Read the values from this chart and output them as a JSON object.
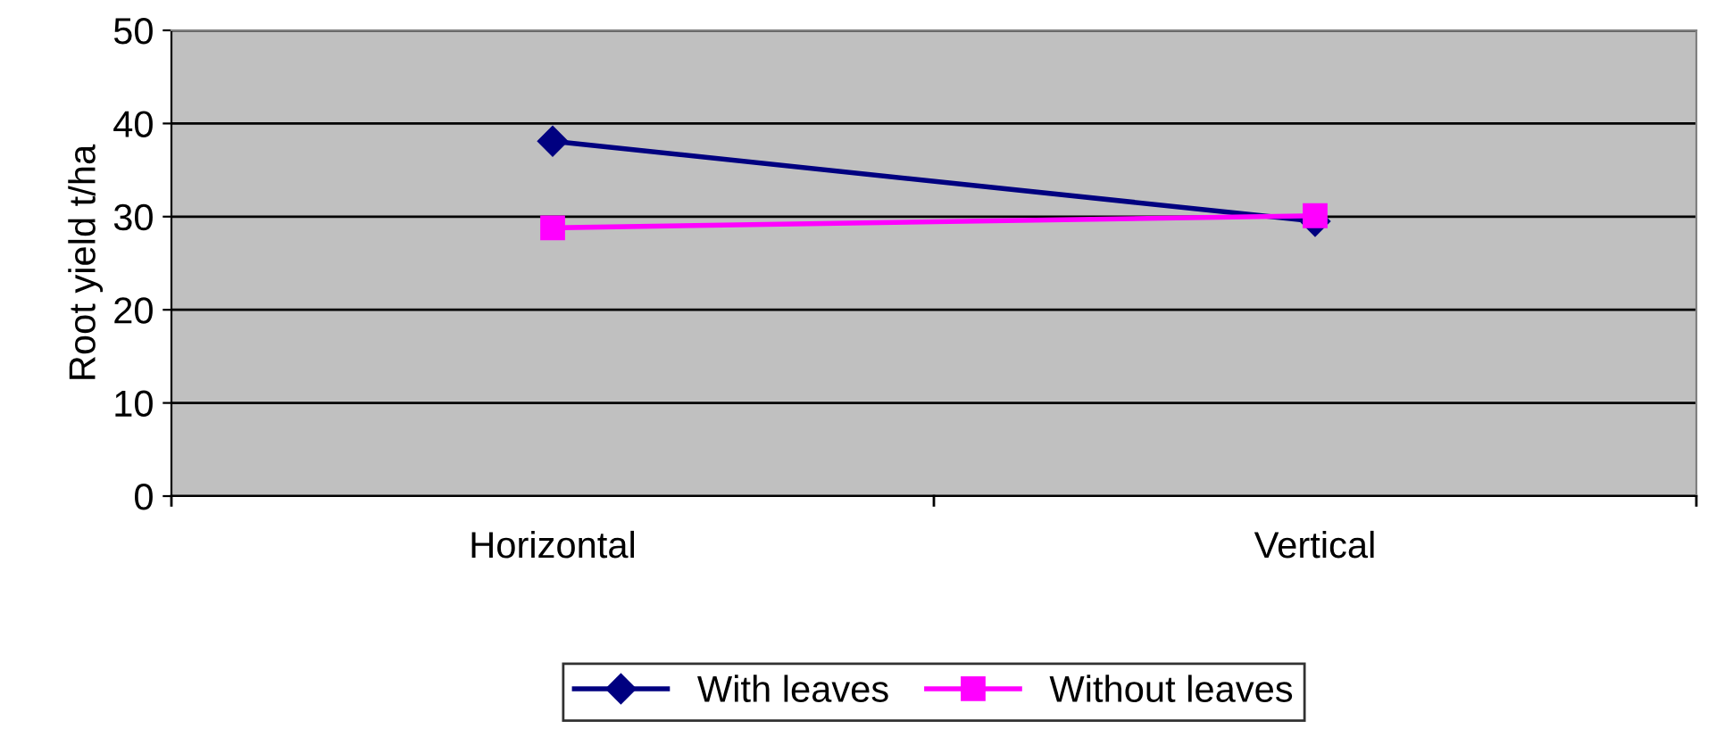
{
  "chart_data": {
    "type": "line",
    "ylabel": "Root yield t/ha",
    "categories": [
      "Horizontal",
      "Vertical"
    ],
    "series": [
      {
        "name": "With leaves",
        "color": "#000080",
        "values": [
          38.1,
          29.5
        ],
        "marker": "diamond"
      },
      {
        "name": "Without leaves",
        "color": "#ff00ff",
        "values": [
          28.8,
          30.1
        ],
        "marker": "square"
      }
    ],
    "ylim": [
      0,
      50
    ],
    "yticks": [
      0,
      10,
      20,
      30,
      40,
      50
    ],
    "grid": "y",
    "legend": "bottom"
  }
}
